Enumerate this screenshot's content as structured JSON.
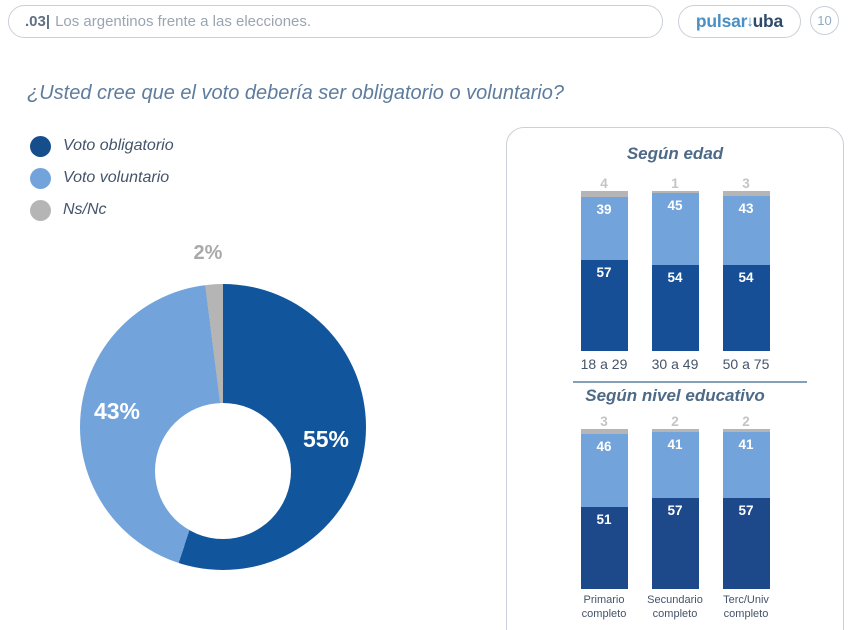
{
  "header": {
    "section_number": ".03|",
    "section_title": "Los argentinos frente a las elecciones.",
    "logo_part1": "pulsar",
    "logo_arrow": "↓",
    "logo_part2": "uba",
    "page_number": "10"
  },
  "question": "¿Usted cree que el voto debería ser obligatorio o voluntario?",
  "legend": {
    "items": [
      {
        "label": "Voto obligatorio",
        "color": "#164E8C"
      },
      {
        "label": "Voto voluntario",
        "color": "#72A3DB"
      },
      {
        "label": "Ns/Nc",
        "color": "#B5B5B5"
      }
    ]
  },
  "chart_data": [
    {
      "type": "pie",
      "donut": true,
      "labels": [
        "Voto obligatorio",
        "Voto voluntario",
        "Ns/Nc"
      ],
      "values": [
        55,
        43,
        2
      ],
      "value_labels": [
        "55%",
        "43%",
        "2%"
      ],
      "colors": [
        "#11559D",
        "#72A3DB",
        "#B5B5B5"
      ],
      "start_angle_deg": 0,
      "direction": "clockwise"
    },
    {
      "type": "bar",
      "stacked": true,
      "title": "Según edad",
      "categories": [
        [
          "18 a 29"
        ],
        [
          "30 a 49"
        ],
        [
          "50 a 75"
        ]
      ],
      "series": [
        {
          "name": "Voto obligatorio",
          "color": "#174F96",
          "values": [
            57,
            54,
            54
          ],
          "label_position": "inside"
        },
        {
          "name": "Voto voluntario",
          "color": "#72A3DB",
          "values": [
            39,
            45,
            43
          ],
          "label_position": "inside"
        },
        {
          "name": "Ns/Nc",
          "color": "#B5B5B5",
          "values": [
            4,
            1,
            3
          ],
          "label_position": "above"
        }
      ],
      "ylim": [
        0,
        100
      ]
    },
    {
      "type": "bar",
      "stacked": true,
      "title": "Según nivel educativo",
      "categories": [
        [
          "Primario",
          "completo"
        ],
        [
          "Secundario",
          "completo"
        ],
        [
          "Terc/Univ",
          "completo"
        ]
      ],
      "series": [
        {
          "name": "Voto obligatorio",
          "color": "#1D4889",
          "values": [
            51,
            57,
            57
          ],
          "label_position": "inside"
        },
        {
          "name": "Voto voluntario",
          "color": "#72A3DB",
          "values": [
            46,
            41,
            41
          ],
          "label_position": "inside"
        },
        {
          "name": "Ns/Nc",
          "color": "#B5B5B5",
          "values": [
            3,
            2,
            2
          ],
          "label_position": "above"
        }
      ],
      "ylim": [
        0,
        100
      ]
    }
  ]
}
